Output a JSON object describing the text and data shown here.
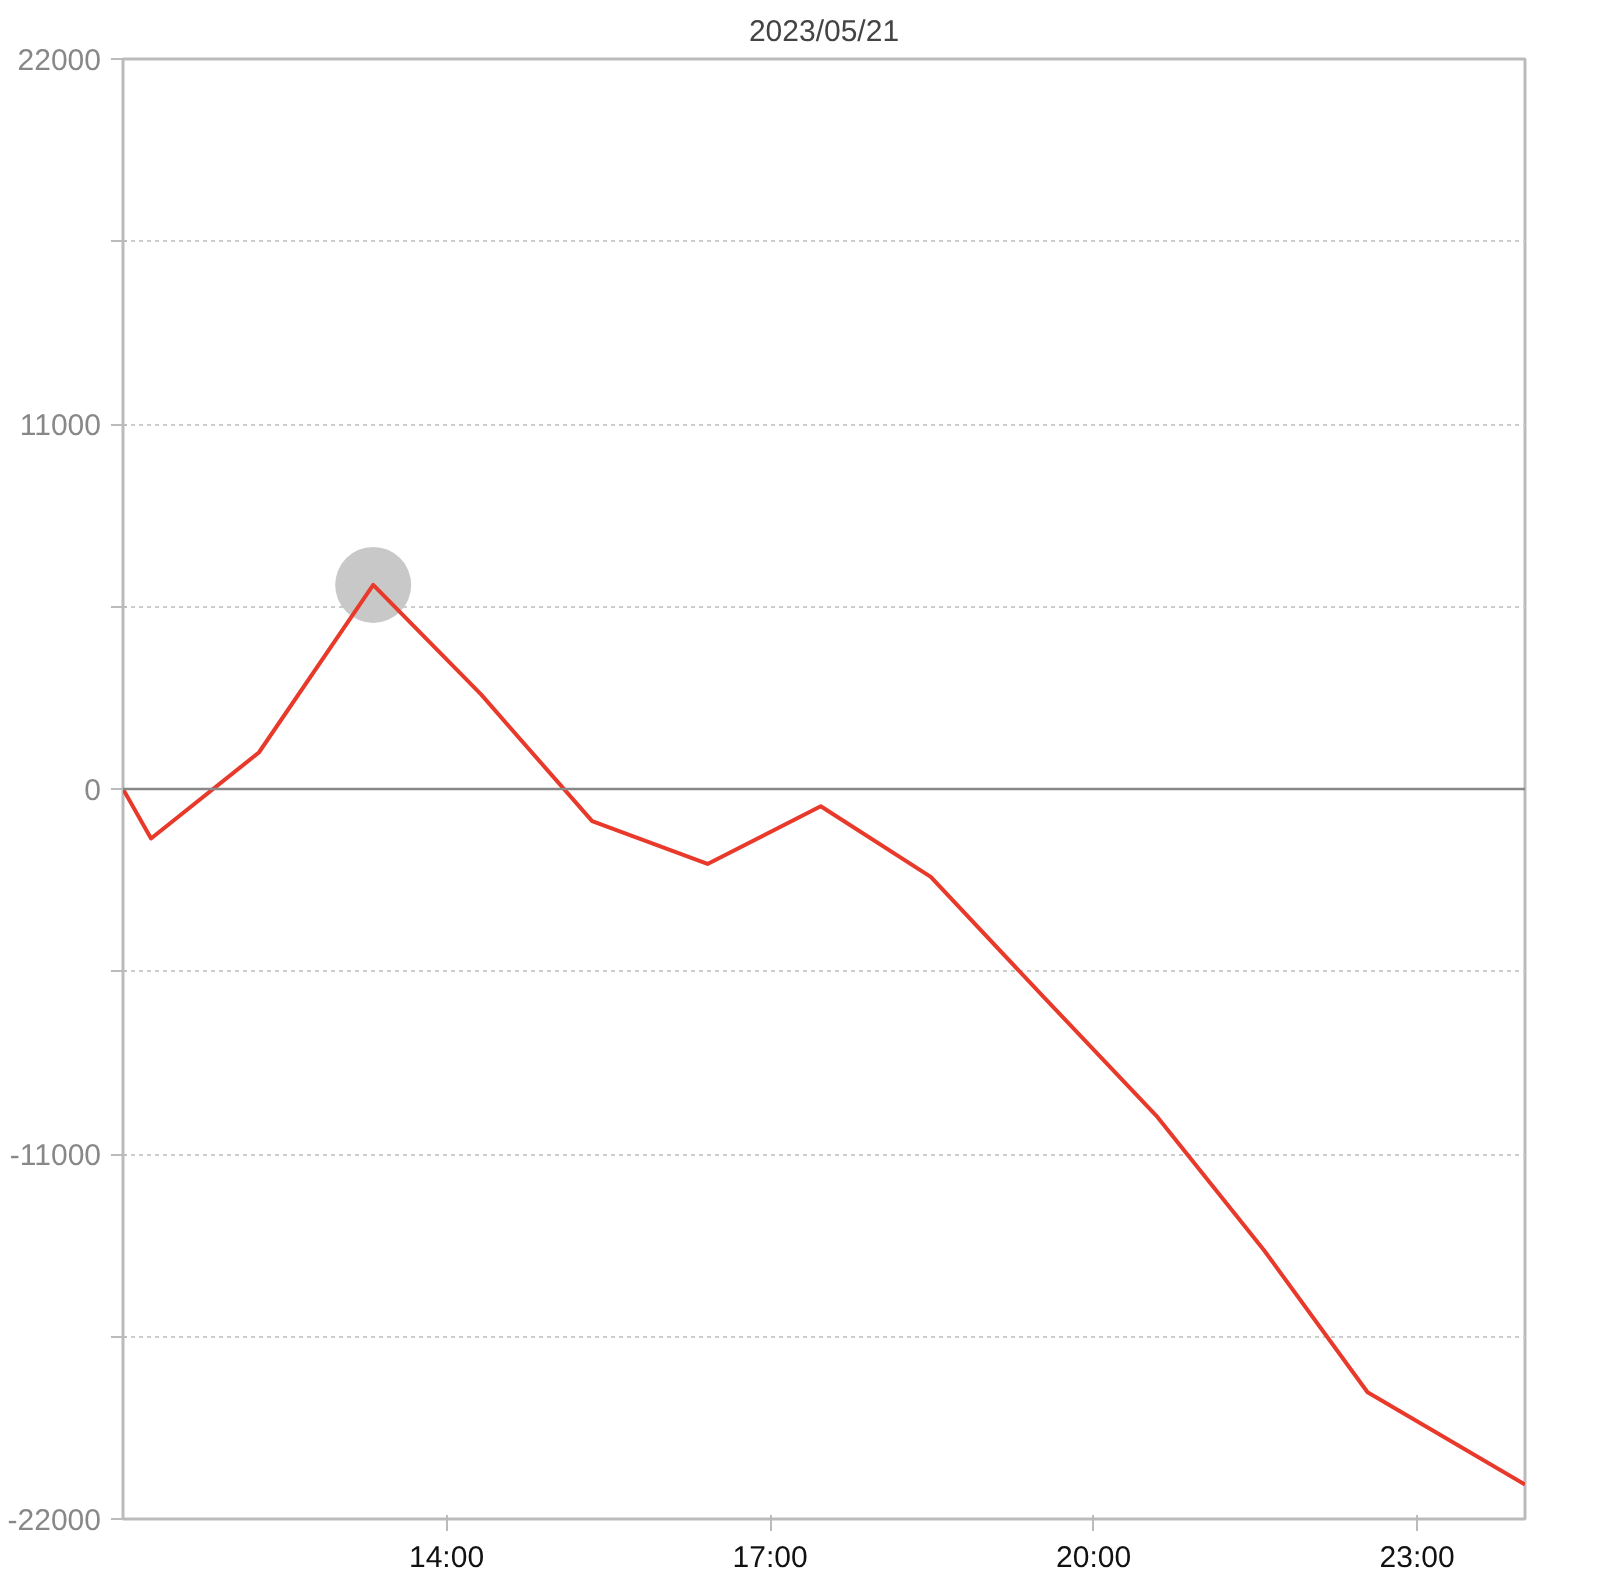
{
  "chart_data": {
    "type": "line",
    "title": "2023/05/21",
    "x": [
      11,
      11.26,
      12.26,
      13.32,
      14.32,
      15.35,
      16.42,
      17.47,
      18.49,
      19.54,
      20.58,
      21.58,
      22.54,
      24
    ],
    "series": [
      {
        "color": "#e8392a",
        "values": [
          0,
          -1490,
          1100,
          6150,
          2850,
          -970,
          -2260,
          -520,
          -2650,
          -6280,
          -9840,
          -13900,
          -18180,
          -20960
        ]
      },
      {
        "type": "scatter",
        "marker": "circle",
        "color": "#c8c8c8",
        "x": [
          13.32
        ],
        "values": [
          6150
        ]
      }
    ],
    "xlim": [
      11,
      24
    ],
    "xticks": [
      {
        "value": 14,
        "label": "14:00"
      },
      {
        "value": 17,
        "label": "17:00"
      },
      {
        "value": 20,
        "label": "20:00"
      },
      {
        "value": 23,
        "label": "23:00"
      }
    ],
    "ylim": [
      -22000,
      22000
    ],
    "yticks": [
      -22000,
      {
        "value": -16500,
        "label": null
      },
      -11000,
      {
        "value": -5500,
        "label": null
      },
      0,
      {
        "value": 5500,
        "label": null
      },
      11000,
      {
        "value": 16500,
        "label": null
      },
      22000
    ],
    "ref_lines": [
      {
        "axis": "y",
        "value": 0,
        "color": "#888888"
      }
    ],
    "grid": "y",
    "line_style": "solid"
  }
}
